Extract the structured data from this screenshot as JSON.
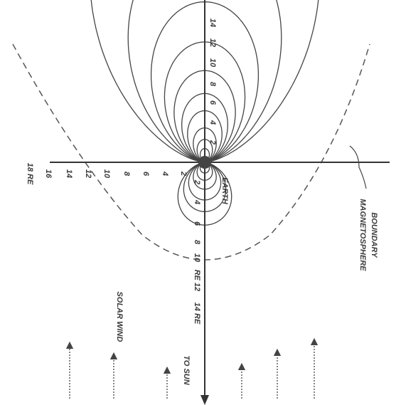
{
  "axis_labels": {
    "left": [
      "18 RE",
      "16",
      "14",
      "12",
      "10",
      "8",
      "6",
      "4",
      "2"
    ],
    "up": [
      "2",
      "4",
      "6",
      "8",
      "10",
      "12",
      "14"
    ],
    "down": [
      "2",
      "4",
      "6",
      "8",
      "10",
      "RE 12",
      "14 RE"
    ]
  },
  "labels": {
    "earth": "EARTH",
    "boundary": [
      "MAGNETOSPHERE",
      "BOUNDARY"
    ],
    "solar_wind": "SOLAR WIND",
    "to_sun": "TO SUN"
  }
}
